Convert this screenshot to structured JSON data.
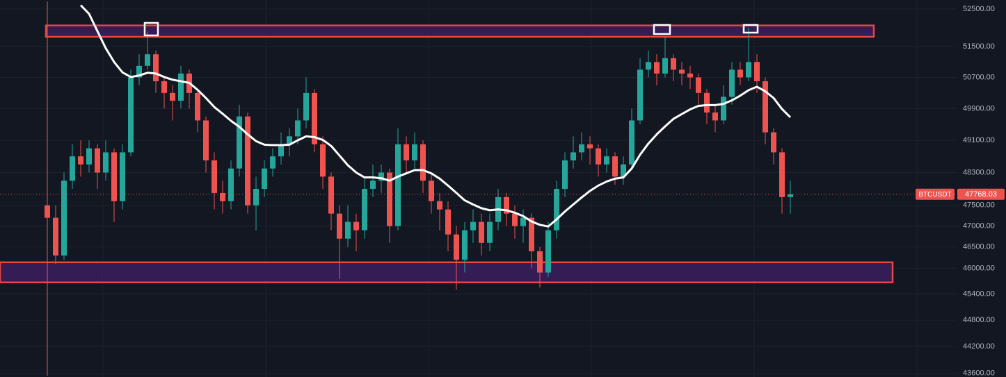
{
  "chart_data": {
    "type": "candlestick",
    "symbol": "BTCUSDT",
    "log_scale": true,
    "grid": true,
    "up_color": "#26a69a",
    "down_color": "#ef5350",
    "ylim": [
      43520,
      52740
    ],
    "yticks": [
      {
        "value": 52500,
        "label": "52500.00"
      },
      {
        "value": 51500,
        "label": "51500.00"
      },
      {
        "value": 50700,
        "label": "50700.00"
      },
      {
        "value": 49900,
        "label": "49900.00"
      },
      {
        "value": 49100,
        "label": "49100.00"
      },
      {
        "value": 48300,
        "label": "48300.00"
      },
      {
        "value": 47500,
        "label": "47500.00"
      },
      {
        "value": 47000,
        "label": "47000.00"
      },
      {
        "value": 46500,
        "label": "46500.00"
      },
      {
        "value": 46000,
        "label": "46000.00"
      },
      {
        "value": 45400,
        "label": "45400.00"
      },
      {
        "value": 44800,
        "label": "44800.00"
      },
      {
        "value": 44200,
        "label": "44200.00"
      },
      {
        "value": 43600,
        "label": "43600.00"
      }
    ],
    "open": [
      47500,
      47200,
      46300,
      48100,
      48700,
      48500,
      48900,
      48300,
      48800,
      47600,
      48800,
      50700,
      51000,
      51300,
      50600,
      50300,
      50100,
      50800,
      50300,
      49600,
      48600,
      47800,
      47600,
      48400,
      49700,
      47500,
      47900,
      48400,
      48700,
      49000,
      49200,
      49600,
      50300,
      49000,
      48200,
      47300,
      46700,
      47100,
      46900,
      47900,
      48100,
      48300,
      47000,
      49000,
      48600,
      49000,
      48100,
      47600,
      47400,
      46800,
      46200,
      46900,
      47100,
      46600,
      47100,
      47700,
      47300,
      47000,
      47200,
      46400,
      45900,
      46900,
      47900,
      48600,
      48800,
      49000,
      48900,
      48500,
      48700,
      48200,
      48500,
      49600,
      50900,
      51100,
      50800,
      51200,
      50900,
      50800,
      50700,
      50300,
      49800,
      49600,
      50200,
      50900,
      50700,
      51100,
      50600,
      49300,
      48800,
      47700
    ],
    "high": [
      52700,
      47500,
      48300,
      49000,
      49100,
      49100,
      49000,
      49100,
      48900,
      49000,
      50900,
      51300,
      51900,
      51400,
      50700,
      50500,
      51000,
      50900,
      50400,
      49700,
      48800,
      48100,
      48600,
      50000,
      49800,
      48200,
      48600,
      48900,
      49300,
      49400,
      49900,
      50700,
      50400,
      49200,
      48300,
      47500,
      47500,
      47300,
      48200,
      48500,
      48500,
      48400,
      49400,
      49200,
      49300,
      49100,
      48300,
      47800,
      47600,
      47000,
      47100,
      47400,
      47300,
      47300,
      47900,
      47800,
      47500,
      47400,
      47300,
      46500,
      47100,
      48100,
      48800,
      49200,
      49300,
      49200,
      49000,
      48900,
      48800,
      48700,
      49900,
      51200,
      51400,
      51300,
      51750,
      51300,
      51100,
      51000,
      50800,
      50400,
      50000,
      50500,
      51100,
      51100,
      52000,
      51300,
      50700,
      49400,
      48900,
      48100
    ],
    "low": [
      43550,
      46100,
      46200,
      47900,
      48200,
      48300,
      47900,
      48100,
      47100,
      47400,
      48700,
      50500,
      50900,
      50300,
      49900,
      49600,
      49900,
      49900,
      49300,
      48300,
      47400,
      47300,
      47400,
      48200,
      47300,
      46900,
      47700,
      48200,
      48500,
      48700,
      49000,
      49400,
      48800,
      47900,
      46900,
      45750,
      46500,
      46400,
      46700,
      47700,
      47800,
      46600,
      46900,
      48300,
      48400,
      47800,
      47300,
      46900,
      46400,
      45500,
      45900,
      46600,
      46300,
      46400,
      46900,
      47000,
      46700,
      46600,
      46000,
      45550,
      45800,
      46700,
      47700,
      48400,
      48600,
      48500,
      48200,
      48300,
      48000,
      48000,
      48400,
      49500,
      50700,
      50500,
      50700,
      50600,
      50500,
      50400,
      50000,
      49500,
      49300,
      49500,
      50000,
      50500,
      50600,
      50300,
      49000,
      48500,
      47300,
      47300
    ],
    "close": [
      47200,
      46300,
      48100,
      48700,
      48500,
      48900,
      48300,
      48800,
      47600,
      48800,
      50700,
      51000,
      51300,
      50600,
      50300,
      50100,
      50800,
      50300,
      49600,
      48600,
      47800,
      47600,
      48400,
      49700,
      47500,
      47900,
      48400,
      48700,
      49000,
      49200,
      49600,
      50300,
      49000,
      48200,
      47300,
      46700,
      47100,
      46900,
      47900,
      48100,
      48300,
      47000,
      49000,
      48600,
      49000,
      48100,
      47600,
      47400,
      46800,
      46200,
      46900,
      47100,
      46600,
      47100,
      47700,
      47300,
      47000,
      47200,
      46400,
      45900,
      46900,
      47900,
      48600,
      48800,
      49000,
      48900,
      48500,
      48700,
      48200,
      48500,
      49600,
      50900,
      51100,
      50800,
      51200,
      50900,
      50800,
      50700,
      50300,
      49800,
      49600,
      50200,
      50900,
      50700,
      51100,
      50600,
      49300,
      48800,
      47700,
      47768.03
    ],
    "ma": {
      "color": "#ffffff",
      "values": [
        null,
        null,
        null,
        null,
        52600,
        52370,
        51910,
        51460,
        51100,
        50830,
        50710,
        50750,
        50820,
        50800,
        50710,
        50640,
        50600,
        50560,
        50380,
        50170,
        49940,
        49770,
        49590,
        49440,
        49250,
        49080,
        48990,
        48980,
        48980,
        48990,
        49100,
        49200,
        49180,
        49110,
        48960,
        48720,
        48480,
        48300,
        48180,
        48180,
        48160,
        48100,
        48200,
        48280,
        48360,
        48360,
        48280,
        48150,
        47980,
        47800,
        47620,
        47520,
        47430,
        47380,
        47400,
        47380,
        47320,
        47240,
        47110,
        47030,
        46990,
        47160,
        47350,
        47520,
        47690,
        47850,
        47980,
        48080,
        48150,
        48180,
        48400,
        48740,
        49020,
        49250,
        49450,
        49640,
        49760,
        49880,
        49970,
        49990,
        49990,
        50020,
        50110,
        50230,
        50370,
        50460,
        50340,
        50170,
        49890,
        49680
      ]
    },
    "zone_color": "#e5483f",
    "zones": [
      {
        "low": 51760,
        "high": 52060
      },
      {
        "low": 45670,
        "high": 46140
      }
    ]
  }
}
